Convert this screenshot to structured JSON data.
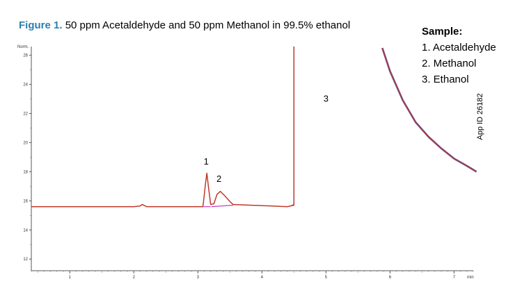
{
  "figure": {
    "label": "Figure 1.",
    "caption": "50 ppm Acetaldehyde and 50 ppm Methanol in 99.5% ethanol"
  },
  "sample_legend": {
    "heading": "Sample:",
    "items": [
      "1. Acetaldehyde",
      "2. Methanol",
      "3. Ethanol"
    ]
  },
  "app_id": "App ID 26182",
  "colors": {
    "caption_label": "#2b7fb0",
    "signal": "#c0392b",
    "baseline": "#c040c0",
    "signal_blue": "#3b4fb0"
  },
  "chart_data": {
    "type": "line",
    "ylabel": "Norm.",
    "xlabel": "min",
    "xlim": [
      0.4,
      7.3
    ],
    "ylim": [
      11.2,
      26.6
    ],
    "x_ticks": [
      1,
      2,
      3,
      4,
      5,
      6,
      7
    ],
    "y_ticks": [
      12,
      14,
      16,
      18,
      20,
      22,
      24,
      26
    ],
    "peak_labels": [
      {
        "label": "1",
        "x": 3.13,
        "y": 18.5
      },
      {
        "label": "2",
        "x": 3.33,
        "y": 17.3
      },
      {
        "label": "3",
        "x": 5.0,
        "y": 22.8
      }
    ],
    "series": [
      {
        "x": [
          0.4,
          2.0,
          2.1,
          2.13,
          2.2,
          3.08,
          3.12,
          3.14,
          3.17,
          3.2,
          3.25,
          3.3,
          3.35,
          3.42,
          3.5,
          3.55,
          4.4,
          4.5,
          4.5
        ],
        "y": [
          15.6,
          15.6,
          15.65,
          15.75,
          15.6,
          15.6,
          17.2,
          17.9,
          16.8,
          15.75,
          15.8,
          16.45,
          16.65,
          16.35,
          15.95,
          15.75,
          15.6,
          15.7,
          26.6
        ]
      },
      {
        "x": [
          5.88,
          6.0,
          6.2,
          6.4,
          6.6,
          6.8,
          7.0,
          7.2,
          7.35
        ],
        "y": [
          26.5,
          24.9,
          22.9,
          21.4,
          20.4,
          19.6,
          18.9,
          18.4,
          18.0
        ]
      }
    ]
  }
}
